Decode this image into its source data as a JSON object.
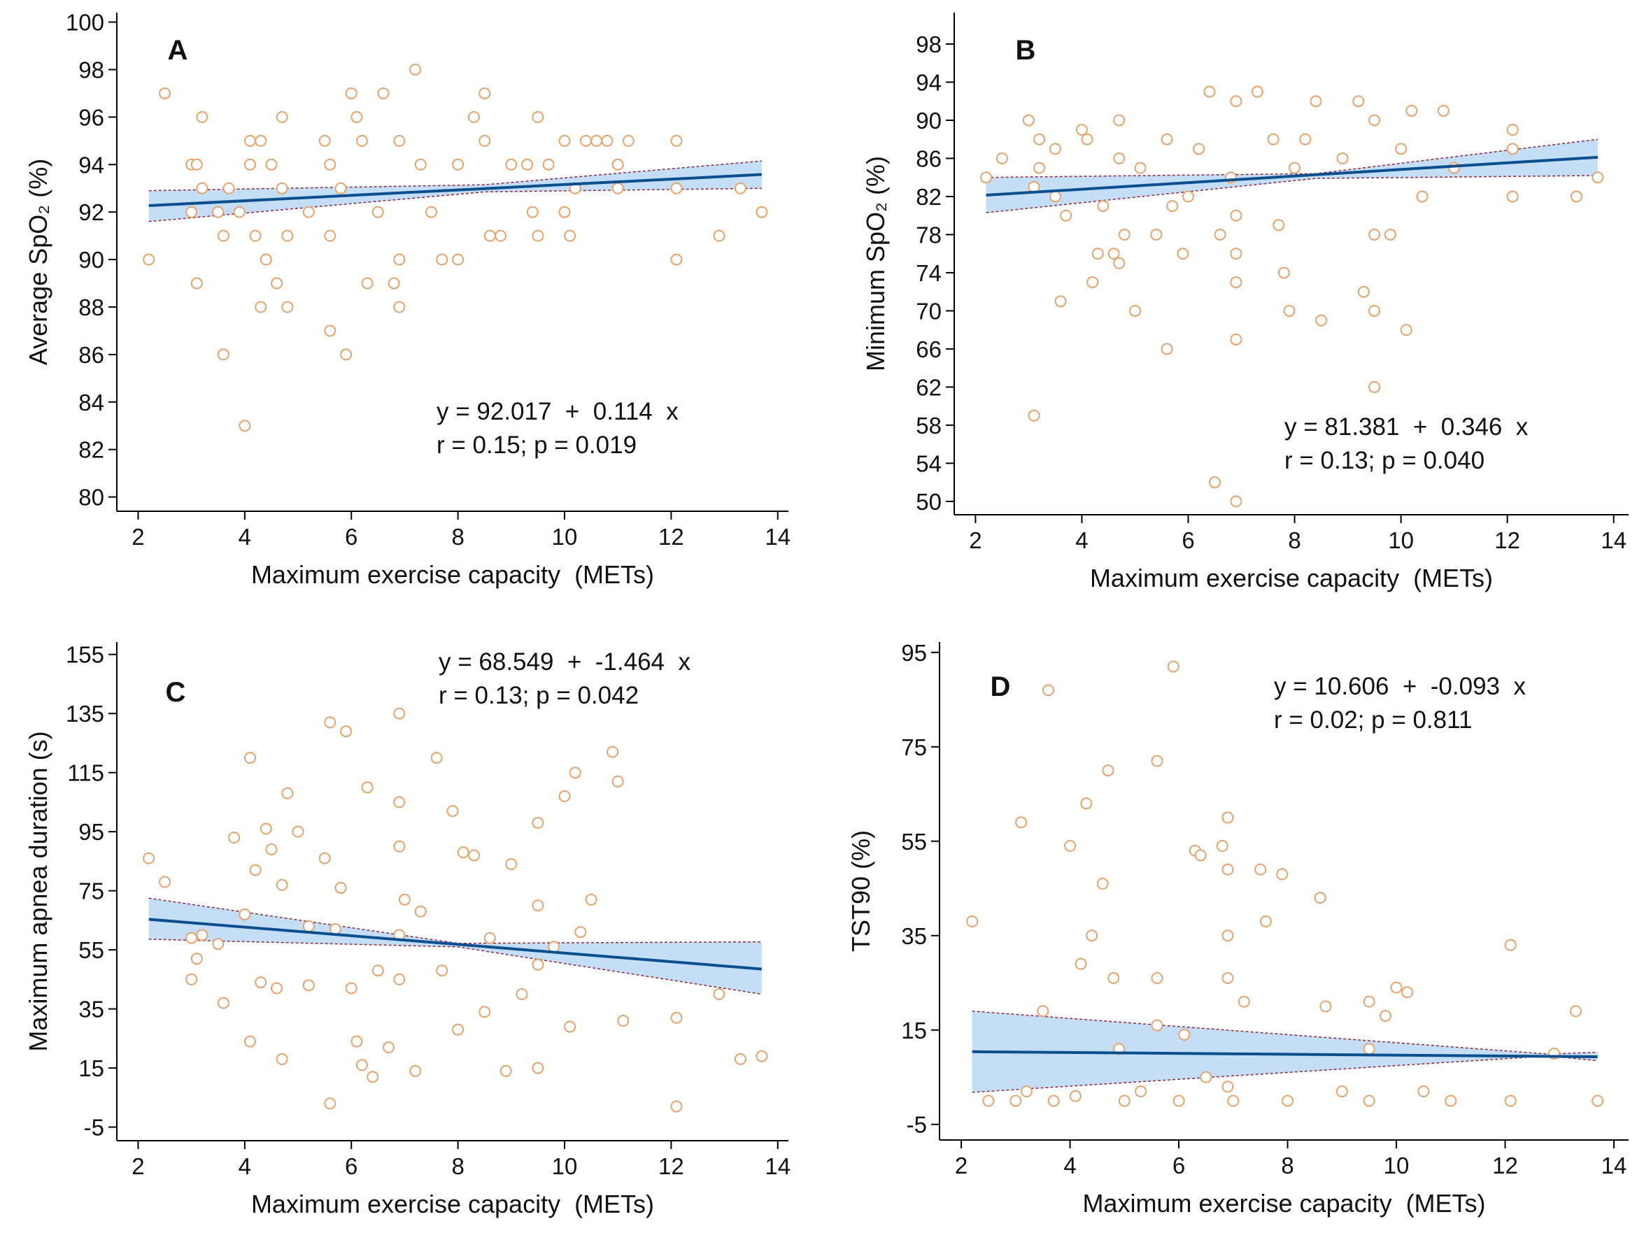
{
  "chart_data": [
    {
      "type": "scatter",
      "panel": "A",
      "ylabel": "Average SpO₂ (%)",
      "xlabel": "Maximum exercise capacity  (METs)",
      "annotations": [
        "y = 92.017  +  0.114  x",
        "r = 0.15; p = 0.019"
      ],
      "xlim": [
        1.6,
        14.2
      ],
      "ylim": [
        79.4,
        100.4
      ],
      "xticks": [
        2,
        4,
        6,
        8,
        10,
        12,
        14
      ],
      "yticks": [
        80,
        82,
        84,
        86,
        88,
        90,
        92,
        94,
        96,
        98,
        100
      ],
      "x": [
        2.2,
        2.5,
        3,
        3.1,
        3,
        3.1,
        3.2,
        3.2,
        3.5,
        3.6,
        3.6,
        3.7,
        3.9,
        4,
        4.1,
        4.1,
        4.2,
        4.3,
        4.3,
        4.4,
        4.5,
        4.6,
        4.7,
        4.7,
        4.8,
        4.8,
        5.2,
        5.5,
        5.6,
        5.6,
        5.6,
        5.8,
        5.9,
        6,
        6.1,
        6.2,
        6.3,
        6.5,
        6.6,
        6.8,
        6.9,
        6.9,
        6.9,
        7.2,
        7.3,
        7.5,
        7.7,
        8,
        8,
        8.3,
        8.5,
        8.5,
        8.6,
        8.8,
        9,
        9.3,
        9.4,
        9.5,
        9.5,
        9.7,
        10,
        10,
        10.1,
        10.2,
        10.4,
        10.6,
        10.8,
        11,
        11,
        11.2,
        12.1,
        12.1,
        12.1,
        12.9,
        13.3,
        13.7
      ],
      "values": [
        90,
        97,
        94,
        94,
        92,
        89,
        96,
        93,
        92,
        91,
        86,
        93,
        92,
        83,
        95,
        94,
        91,
        95,
        88,
        90,
        94,
        89,
        96,
        93,
        91,
        88,
        92,
        95,
        94,
        87,
        91,
        93,
        86,
        97,
        96,
        95,
        89,
        92,
        97,
        89,
        88,
        95,
        90,
        98,
        94,
        92,
        90,
        94,
        90,
        96,
        97,
        95,
        91,
        91,
        94,
        94,
        92,
        96,
        91,
        94,
        95,
        92,
        91,
        93,
        95,
        95,
        95,
        94,
        93,
        95,
        95,
        93,
        90,
        91,
        93,
        92
      ],
      "fit_x": [
        2.2,
        13.7
      ],
      "fit_values": [
        92.27,
        93.58
      ],
      "band_x": [
        2.2,
        8.5,
        13.7
      ],
      "band_upper": [
        92.9,
        93.15,
        94.15
      ],
      "band_lower": [
        91.6,
        92.85,
        93.0
      ],
      "point_color": "#e8a36a",
      "line_color": "#0b4f8f",
      "band_color": "#c5def7",
      "band_edge_color": "#8b2a3a"
    },
    {
      "type": "scatter",
      "panel": "B",
      "ylabel": "Minimum SpO₂ (%)",
      "xlabel": "Maximum exercise capacity  (METs)",
      "annotations": [
        "y = 81.381  +  0.346  x",
        "r = 0.13; p = 0.040"
      ],
      "xlim": [
        1.6,
        14.28
      ],
      "ylim": [
        48.6,
        101.3
      ],
      "xticks": [
        2,
        4,
        6,
        8,
        10,
        12,
        14
      ],
      "yticks": [
        50,
        54,
        58,
        62,
        66,
        70,
        74,
        78,
        82,
        86,
        90,
        94,
        98
      ],
      "x": [
        2.2,
        2.5,
        3,
        3.1,
        3.1,
        3.2,
        3.2,
        3.5,
        3.5,
        3.6,
        3.7,
        4,
        4.1,
        4.2,
        4.3,
        4.4,
        4.6,
        4.7,
        4.7,
        4.7,
        4.8,
        5,
        5.1,
        5.4,
        5.6,
        5.6,
        5.7,
        5.9,
        6,
        6.2,
        6.4,
        6.5,
        6.6,
        6.8,
        6.9,
        6.9,
        6.9,
        6.9,
        6.9,
        6.9,
        7.3,
        7.6,
        7.7,
        7.8,
        7.9,
        8,
        8.2,
        8.4,
        8.5,
        8.9,
        9.2,
        9.5,
        9.3,
        9.5,
        9.5,
        9.5,
        9.8,
        10,
        10.1,
        10.2,
        10.4,
        10.8,
        11,
        12.1,
        12.1,
        12.1,
        13.3,
        13.7
      ],
      "values": [
        84,
        86,
        90,
        83,
        59,
        85,
        88,
        82,
        87,
        71,
        80,
        89,
        88,
        73,
        76,
        81,
        76,
        75,
        90,
        86,
        78,
        70,
        85,
        78,
        66,
        88,
        81,
        76,
        82,
        87,
        93,
        52,
        78,
        84,
        92,
        67,
        73,
        50,
        80,
        76,
        93,
        88,
        79,
        74,
        70,
        85,
        88,
        92,
        69,
        86,
        92,
        90,
        72,
        70,
        62,
        78,
        78,
        87,
        68,
        91,
        82,
        91,
        85,
        87,
        89,
        82,
        82,
        84
      ],
      "fit_x": [
        2.2,
        13.7
      ],
      "fit_values": [
        82.14,
        86.12
      ],
      "band_x": [
        2.2,
        8.4,
        13.7
      ],
      "band_upper": [
        84.0,
        84.4,
        88.0
      ],
      "band_lower": [
        80.3,
        83.9,
        84.2
      ],
      "point_color": "#e8a36a",
      "line_color": "#0b4f8f",
      "band_color": "#c5def7",
      "band_edge_color": "#8b2a3a"
    },
    {
      "type": "scatter",
      "panel": "C",
      "ylabel": "Maximum apnea duration (s)",
      "xlabel": "Maximum exercise capacity  (METs)",
      "annotations": [
        "y = 68.549  +  -1.464  x",
        "r = 0.13; p = 0.042"
      ],
      "xlim": [
        1.6,
        14.2
      ],
      "ylim": [
        -9.6,
        159.2
      ],
      "xticks": [
        2,
        4,
        6,
        8,
        10,
        12,
        14
      ],
      "yticks": [
        -5,
        15,
        35,
        55,
        75,
        95,
        115,
        135,
        155
      ],
      "x": [
        2.2,
        2.5,
        3,
        3,
        3.1,
        3.2,
        3.5,
        3.6,
        3.8,
        4,
        4.1,
        4.1,
        4.2,
        4.3,
        4.4,
        4.5,
        4.6,
        4.7,
        4.7,
        4.8,
        5,
        5.2,
        5.2,
        5.5,
        5.6,
        5.6,
        5.7,
        5.8,
        5.9,
        6,
        6.1,
        6.2,
        6.3,
        6.4,
        6.5,
        6.7,
        6.9,
        6.9,
        6.9,
        6.9,
        6.9,
        7,
        7.2,
        7.3,
        7.6,
        7.7,
        7.9,
        8,
        8.1,
        8.3,
        8.5,
        8.6,
        8.9,
        9,
        9.2,
        9.5,
        9.5,
        9.5,
        9.5,
        9.8,
        10,
        10.1,
        10.2,
        10.3,
        10.5,
        10.9,
        11,
        11.1,
        12.1,
        12.1,
        12.9,
        13.3,
        13.7
      ],
      "values": [
        86,
        78,
        59,
        45,
        52,
        60,
        57,
        37,
        93,
        67,
        24,
        120,
        82,
        44,
        96,
        89,
        42,
        77,
        18,
        108,
        95,
        63,
        43,
        86,
        132,
        3,
        62,
        76,
        129,
        42,
        24,
        16,
        110,
        12,
        48,
        22,
        105,
        90,
        60,
        45,
        135,
        72,
        14,
        68,
        120,
        48,
        102,
        28,
        88,
        87,
        34,
        59,
        14,
        84,
        40,
        98,
        70,
        50,
        15,
        56,
        107,
        29,
        115,
        61,
        72,
        122,
        112,
        31,
        2,
        32,
        40,
        18,
        19
      ],
      "fit_x": [
        2.2,
        13.7
      ],
      "fit_values": [
        65.33,
        48.49
      ],
      "band_x": [
        2.2,
        8,
        13.7
      ],
      "band_upper": [
        72.5,
        57.2,
        57.7
      ],
      "band_lower": [
        58.6,
        56,
        40
      ],
      "point_color": "#e8a36a",
      "line_color": "#0b4f8f",
      "band_color": "#c5def7",
      "band_edge_color": "#8b2a3a"
    },
    {
      "type": "scatter",
      "panel": "D",
      "ylabel": "TST90 (%)",
      "xlabel": "Maximum exercise capacity  (METs)",
      "annotations": [
        "y = 10.606  +  -0.093  x",
        "r = 0.02; p = 0.811"
      ],
      "xlim": [
        1.6,
        14.27
      ],
      "ylim": [
        -8.3,
        97.2
      ],
      "xticks": [
        2,
        4,
        6,
        8,
        10,
        12,
        14
      ],
      "yticks": [
        -5,
        15,
        35,
        55,
        75,
        95
      ],
      "x": [
        2.2,
        2.5,
        3,
        3.1,
        3.2,
        3.5,
        3.6,
        3.7,
        4,
        4.1,
        4.2,
        4.3,
        4.4,
        4.6,
        4.7,
        4.8,
        4.9,
        5,
        5.3,
        5.6,
        5.6,
        5.6,
        5.9,
        6,
        6.1,
        6.3,
        6.4,
        6.5,
        6.8,
        6.9,
        6.9,
        6.9,
        6.9,
        6.9,
        7,
        7.2,
        7.5,
        7.6,
        7.9,
        8,
        8.6,
        8.7,
        9,
        9.5,
        9.5,
        9.5,
        9.8,
        10,
        10.2,
        10.5,
        11,
        12.1,
        12.1,
        12.9,
        13.3,
        13.7
      ],
      "values": [
        38,
        0,
        0,
        59,
        2,
        19,
        87,
        0,
        54,
        1,
        29,
        63,
        35,
        46,
        70,
        26,
        11,
        0,
        2,
        72,
        26,
        16,
        92,
        0,
        14,
        53,
        52,
        5,
        54,
        60,
        49,
        35,
        26,
        3,
        0,
        21,
        49,
        38,
        48,
        0,
        43,
        20,
        2,
        21,
        11,
        0,
        18,
        24,
        23,
        2,
        0,
        33,
        0,
        10,
        19,
        0
      ],
      "fit_x": [
        2.2,
        13.7
      ],
      "fit_values": [
        10.4,
        9.33
      ],
      "band_x": [
        2.2,
        12.8,
        13.7
      ],
      "band_upper": [
        19,
        9.9,
        10.3
      ],
      "band_lower": [
        1.8,
        9.5,
        8.5
      ],
      "point_color": "#e8a36a",
      "line_color": "#0b4f8f",
      "band_color": "#c5def7",
      "band_edge_color": "#8b2a3a"
    }
  ]
}
